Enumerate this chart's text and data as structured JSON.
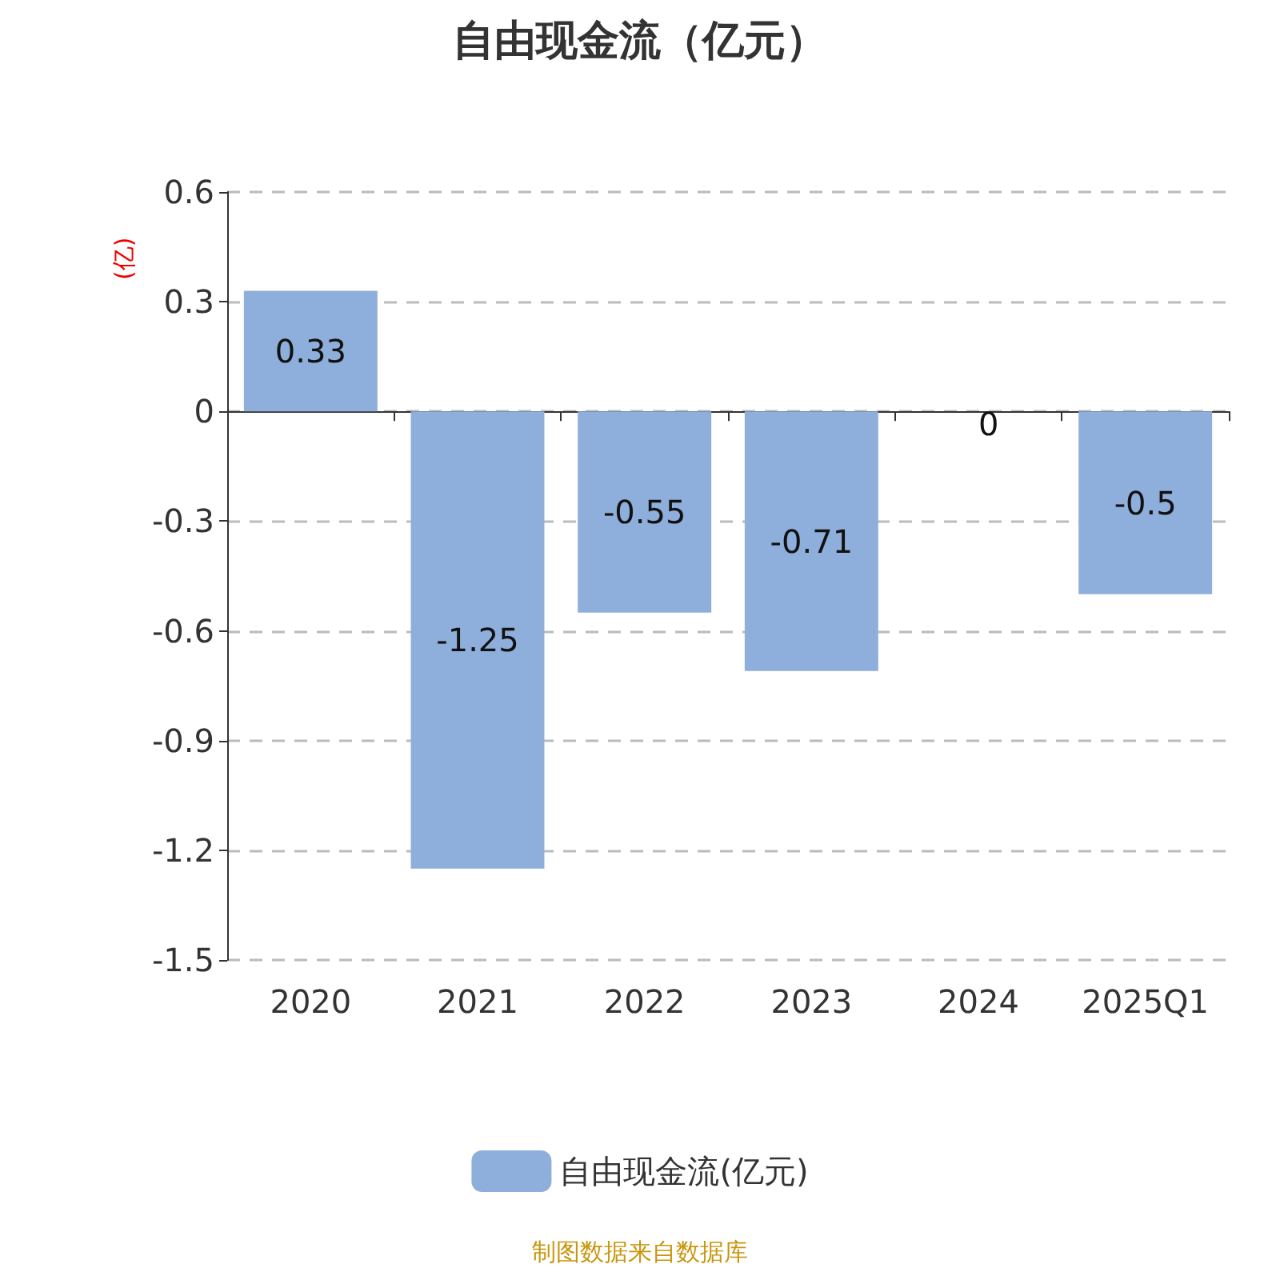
{
  "chart_data": {
    "type": "bar",
    "title": "自由现金流（亿元）",
    "ylabel": "(亿)",
    "categories": [
      "2020",
      "2021",
      "2022",
      "2023",
      "2024",
      "2025Q1"
    ],
    "series": [
      {
        "name": "自由现金流(亿元)",
        "color": "#8eaedb",
        "values": [
          0.33,
          -1.25,
          -0.55,
          -0.71,
          0,
          -0.5
        ]
      }
    ],
    "ylim": [
      -1.5,
      0.6
    ],
    "yticks": [
      -1.5,
      -1.2,
      -0.9,
      -0.6,
      -0.3,
      0,
      0.3,
      0.6
    ],
    "grid": "y",
    "data_labels": true,
    "legend": "bottom",
    "annotations": [
      "制图数据来自数据库"
    ]
  }
}
